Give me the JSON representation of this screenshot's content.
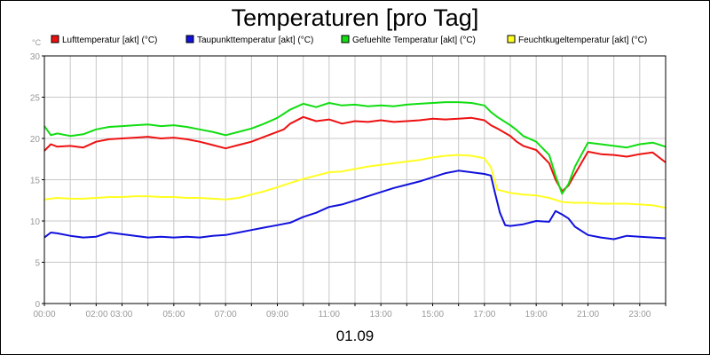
{
  "chart_data": {
    "type": "line",
    "title": "Temperaturen [pro Tag]",
    "y_unit": "°C",
    "date_label": "01.09",
    "ylim": [
      0,
      30
    ],
    "xlim": [
      0,
      24
    ],
    "y_ticks": [
      "0",
      "5",
      "10",
      "15",
      "20",
      "25",
      "30"
    ],
    "x_ticks": [
      {
        "hour": 0,
        "label": "00:00"
      },
      {
        "hour": 2.5,
        "label": "02:00 03:00"
      },
      {
        "hour": 5,
        "label": "05:00"
      },
      {
        "hour": 7,
        "label": "07:00"
      },
      {
        "hour": 9,
        "label": "09:00"
      },
      {
        "hour": 11,
        "label": "11:00"
      },
      {
        "hour": 13,
        "label": "13:00"
      },
      {
        "hour": 15,
        "label": "15:00"
      },
      {
        "hour": 17,
        "label": "17:00"
      },
      {
        "hour": 19,
        "label": "19:00"
      },
      {
        "hour": 21,
        "label": "21:00"
      },
      {
        "hour": 23,
        "label": "23:00"
      }
    ],
    "grid": true,
    "legend_position": "top",
    "series": [
      {
        "name": "Lufttemperatur [akt] (°C)",
        "color": "#ee1111",
        "x": [
          0,
          0.25,
          0.5,
          1,
          1.5,
          2,
          2.5,
          3,
          3.5,
          4,
          4.5,
          5,
          5.5,
          6,
          6.5,
          7,
          7.5,
          8,
          8.5,
          9,
          9.25,
          9.5,
          10,
          10.5,
          11,
          11.5,
          12,
          12.5,
          13,
          13.5,
          14,
          14.5,
          15,
          15.5,
          16,
          16.5,
          17,
          17.25,
          17.5,
          18,
          18.25,
          18.5,
          19,
          19.5,
          19.75,
          20,
          20.25,
          20.5,
          21,
          21.5,
          22,
          22.5,
          23,
          23.5,
          24
        ],
        "y": [
          18.5,
          19.3,
          19.0,
          19.1,
          18.9,
          19.6,
          19.9,
          20.0,
          20.1,
          20.2,
          20.0,
          20.1,
          19.9,
          19.6,
          19.2,
          18.8,
          19.2,
          19.6,
          20.2,
          20.8,
          21.1,
          21.8,
          22.6,
          22.1,
          22.3,
          21.8,
          22.1,
          22.0,
          22.2,
          22.0,
          22.1,
          22.2,
          22.4,
          22.3,
          22.4,
          22.5,
          22.2,
          21.6,
          21.2,
          20.3,
          19.6,
          19.1,
          18.6,
          17.0,
          15.0,
          13.6,
          14.3,
          15.7,
          18.4,
          18.1,
          18.0,
          17.8,
          18.1,
          18.3,
          17.1
        ]
      },
      {
        "name": "Taupunkttemperatur [akt] (°C)",
        "color": "#1111dd",
        "x": [
          0,
          0.25,
          0.5,
          1,
          1.5,
          2,
          2.5,
          3,
          3.5,
          4,
          4.5,
          5,
          5.5,
          6,
          6.5,
          7,
          7.5,
          8,
          8.5,
          9,
          9.5,
          10,
          10.5,
          11,
          11.5,
          12,
          12.5,
          13,
          13.5,
          14,
          14.5,
          15,
          15.5,
          16,
          16.5,
          17,
          17.25,
          17.4,
          17.6,
          17.8,
          18,
          18.5,
          19,
          19.5,
          19.75,
          20,
          20.25,
          20.5,
          21,
          21.5,
          22,
          22.5,
          23,
          23.5,
          24
        ],
        "y": [
          8.0,
          8.6,
          8.5,
          8.2,
          8.0,
          8.1,
          8.6,
          8.4,
          8.2,
          8.0,
          8.1,
          8.0,
          8.1,
          8.0,
          8.2,
          8.3,
          8.6,
          8.9,
          9.2,
          9.5,
          9.8,
          10.5,
          11.0,
          11.7,
          12.0,
          12.5,
          13.0,
          13.5,
          14.0,
          14.4,
          14.8,
          15.3,
          15.8,
          16.1,
          15.9,
          15.7,
          15.5,
          13.5,
          11.0,
          9.5,
          9.4,
          9.6,
          10.0,
          9.9,
          11.2,
          10.8,
          10.3,
          9.3,
          8.3,
          8.0,
          7.8,
          8.2,
          8.1,
          8.0,
          7.9
        ]
      },
      {
        "name": "Gefuehlte Temperatur [akt] (°C)",
        "color": "#11dd11",
        "x": [
          0,
          0.25,
          0.5,
          1,
          1.5,
          2,
          2.5,
          3,
          3.5,
          4,
          4.5,
          5,
          5.5,
          6,
          6.5,
          7,
          7.5,
          8,
          8.5,
          9,
          9.25,
          9.5,
          10,
          10.5,
          11,
          11.5,
          12,
          12.5,
          13,
          13.5,
          14,
          14.5,
          15,
          15.5,
          16,
          16.5,
          17,
          17.25,
          17.5,
          18,
          18.25,
          18.5,
          19,
          19.5,
          19.75,
          20,
          20.25,
          20.5,
          21,
          21.5,
          22,
          22.5,
          23,
          23.5,
          24
        ],
        "y": [
          21.5,
          20.4,
          20.6,
          20.3,
          20.5,
          21.1,
          21.4,
          21.5,
          21.6,
          21.7,
          21.5,
          21.6,
          21.4,
          21.1,
          20.8,
          20.4,
          20.8,
          21.2,
          21.8,
          22.5,
          23.0,
          23.5,
          24.2,
          23.8,
          24.3,
          24.0,
          24.1,
          23.9,
          24.0,
          23.9,
          24.1,
          24.2,
          24.3,
          24.4,
          24.4,
          24.3,
          24.0,
          23.2,
          22.6,
          21.6,
          21.0,
          20.3,
          19.6,
          18.0,
          15.5,
          13.3,
          14.5,
          16.6,
          19.5,
          19.3,
          19.1,
          18.9,
          19.3,
          19.5,
          19.0
        ]
      },
      {
        "name": "Feuchtkugeltemperatur [akt] (°C)",
        "color": "#ffff22",
        "x": [
          0,
          0.5,
          1,
          1.5,
          2,
          2.5,
          3,
          3.5,
          4,
          4.5,
          5,
          5.5,
          6,
          6.5,
          7,
          7.5,
          8,
          8.5,
          9,
          9.5,
          10,
          10.5,
          11,
          11.5,
          12,
          12.5,
          13,
          13.5,
          14,
          14.5,
          15,
          15.5,
          16,
          16.5,
          17,
          17.25,
          17.5,
          18,
          18.5,
          19,
          19.5,
          20,
          20.5,
          21,
          21.5,
          22,
          22.5,
          23,
          23.5,
          24
        ],
        "y": [
          12.6,
          12.8,
          12.7,
          12.7,
          12.8,
          12.9,
          12.9,
          13.0,
          13.0,
          12.9,
          12.9,
          12.8,
          12.8,
          12.7,
          12.6,
          12.8,
          13.2,
          13.6,
          14.1,
          14.6,
          15.1,
          15.5,
          15.9,
          16.0,
          16.3,
          16.6,
          16.8,
          17.0,
          17.2,
          17.4,
          17.7,
          17.9,
          18.0,
          17.9,
          17.6,
          16.5,
          13.8,
          13.4,
          13.2,
          13.1,
          12.8,
          12.3,
          12.2,
          12.2,
          12.1,
          12.1,
          12.1,
          12.0,
          11.9,
          11.6
        ]
      }
    ]
  }
}
